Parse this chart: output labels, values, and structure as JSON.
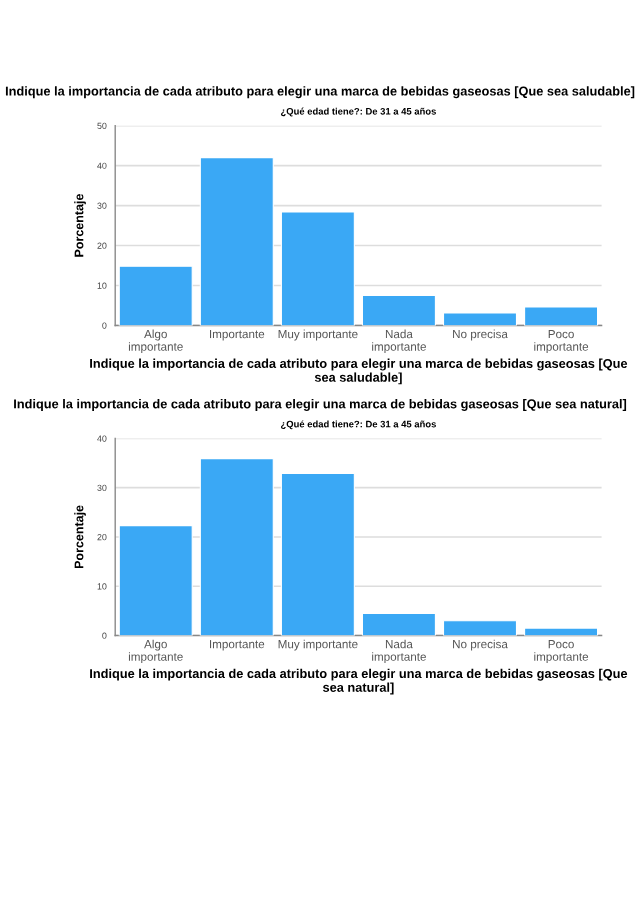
{
  "chart_data": [
    {
      "type": "bar",
      "title": "Indique la importancia de cada atributo para elegir una marca de bebidas gaseosas [Que sea saludable]",
      "subtitle": "¿Qué edad tiene?: De 31 a 45 años",
      "xlabel": "Indique la importancia de cada atributo para elegir una marca de bebidas gaseosas [Que sea saludable]",
      "ylabel": "Porcentaje",
      "categories": [
        "Algo importante",
        "Importante",
        "Muy importante",
        "Nada importante",
        "No precisa",
        "Poco importante"
      ],
      "values": [
        14.8,
        42.0,
        28.4,
        7.5,
        3.1,
        4.6
      ],
      "color": "#3aa8f5",
      "ylim": [
        0,
        50
      ],
      "yticks": [
        0,
        10,
        20,
        30,
        40,
        50
      ],
      "grid": "y"
    },
    {
      "type": "bar",
      "title": "Indique la importancia de cada atributo para elegir una marca de bebidas gaseosas [Que sea natural]",
      "subtitle": "¿Qué edad tiene?: De 31 a 45 años",
      "xlabel": "Indique la importancia de cada atributo para elegir una marca de bebidas gaseosas [Que sea natural]",
      "ylabel": "Porcentaje",
      "categories": [
        "Algo importante",
        "Importante",
        "Muy importante",
        "Nada importante",
        "No precisa",
        "Poco importante"
      ],
      "values": [
        22.3,
        35.9,
        32.9,
        4.5,
        3.0,
        1.5
      ],
      "color": "#3aa8f5",
      "ylim": [
        0,
        40
      ],
      "yticks": [
        0,
        10,
        20,
        30,
        40
      ],
      "grid": "y"
    }
  ]
}
